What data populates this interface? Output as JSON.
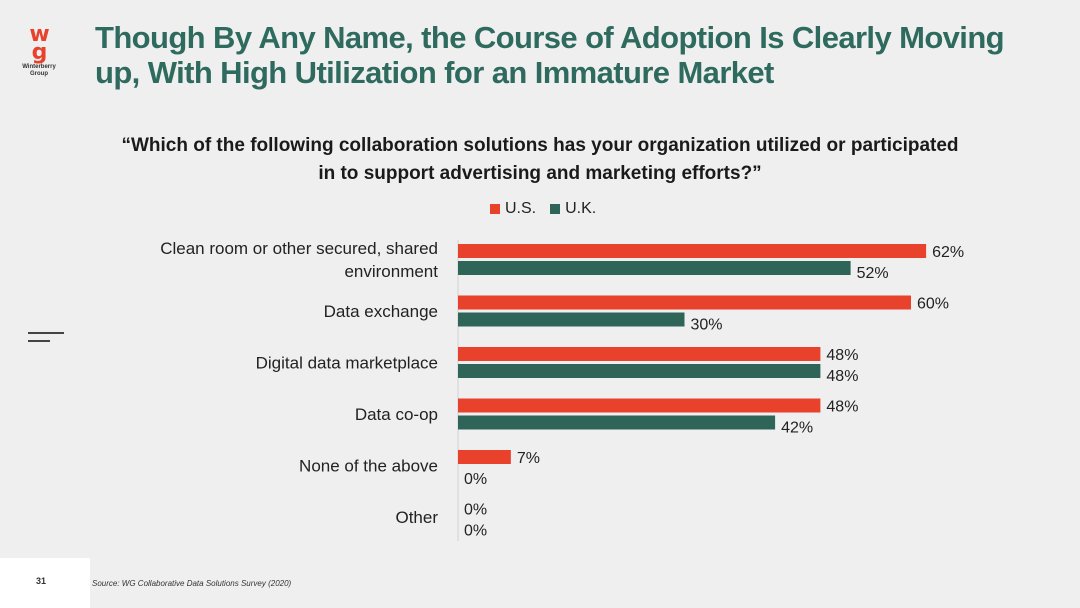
{
  "logo": {
    "brand": "Winterberry Group",
    "line1": "Winterberry",
    "line2": "Group"
  },
  "title": "Though By Any Name, the Course of Adoption Is Clearly Moving up, With High Utilization for an Immature Market",
  "footer": {
    "page_number": "31",
    "source": "Source: WG Collaborative Data Solutions Survey (2020)"
  },
  "colors": {
    "us": "#e8412c",
    "uk": "#2e6558",
    "title": "#2e6b5e"
  },
  "chart_data": {
    "type": "bar",
    "orientation": "horizontal",
    "title": "“Which of the following collaboration solutions has your organization utilized or participated in to support advertising and marketing efforts?”",
    "categories": [
      [
        "Clean room or other secured, shared",
        "environment"
      ],
      [
        "Data exchange"
      ],
      [
        "Digital data marketplace"
      ],
      [
        "Data co-op"
      ],
      [
        "None of the above"
      ],
      [
        "Other"
      ]
    ],
    "series": [
      {
        "name": "U.S.",
        "values": [
          62,
          60,
          48,
          48,
          7,
          0
        ],
        "labels": [
          "62%",
          "60%",
          "48%",
          "48%",
          "7%",
          "0%"
        ]
      },
      {
        "name": "U.K.",
        "values": [
          52,
          30,
          48,
          42,
          0,
          0
        ],
        "labels": [
          "52%",
          "30%",
          "48%",
          "42%",
          "0%",
          "0%"
        ]
      }
    ],
    "xlim": [
      0,
      100
    ],
    "grid": false,
    "legend": "top-center"
  }
}
